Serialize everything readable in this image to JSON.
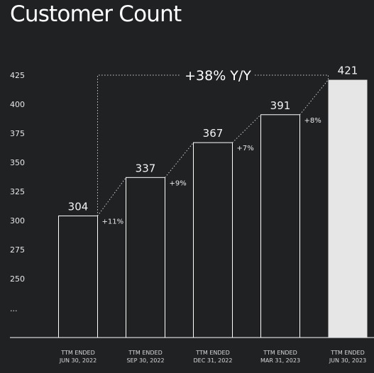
{
  "chart_data": {
    "type": "bar",
    "title": "Customer Count",
    "categories": [
      [
        "TTM ENDED",
        "JUN 30, 2022"
      ],
      [
        "TTM ENDED",
        "SEP 30, 2022"
      ],
      [
        "TTM ENDED",
        "DEC 31, 2022"
      ],
      [
        "TTM ENDED",
        "MAR 31, 2023"
      ],
      [
        "TTM ENDED",
        "JUN 30, 2023"
      ]
    ],
    "values": [
      304,
      337,
      367,
      391,
      421
    ],
    "value_labels": [
      "304",
      "337",
      "367",
      "391",
      "421"
    ],
    "growth_labels": [
      "+11%",
      "+9%",
      "+7%",
      "+8%"
    ],
    "yoy_label": "+38% Y/Y",
    "y_ticks": [
      {
        "value": 425,
        "label": "425"
      },
      {
        "value": 400,
        "label": "400"
      },
      {
        "value": 375,
        "label": "375"
      },
      {
        "value": 350,
        "label": "350"
      },
      {
        "value": 325,
        "label": "325"
      },
      {
        "value": 300,
        "label": "300"
      },
      {
        "value": 275,
        "label": "275"
      },
      {
        "value": 250,
        "label": "250"
      }
    ],
    "y_break_label": "...",
    "ylim": [
      223,
      425
    ],
    "grid": false,
    "colors": {
      "background": "#1f2123",
      "bar_outline": "#ffffff",
      "highlight_bar": "#e6e6e6",
      "text": "#ffffff"
    }
  }
}
